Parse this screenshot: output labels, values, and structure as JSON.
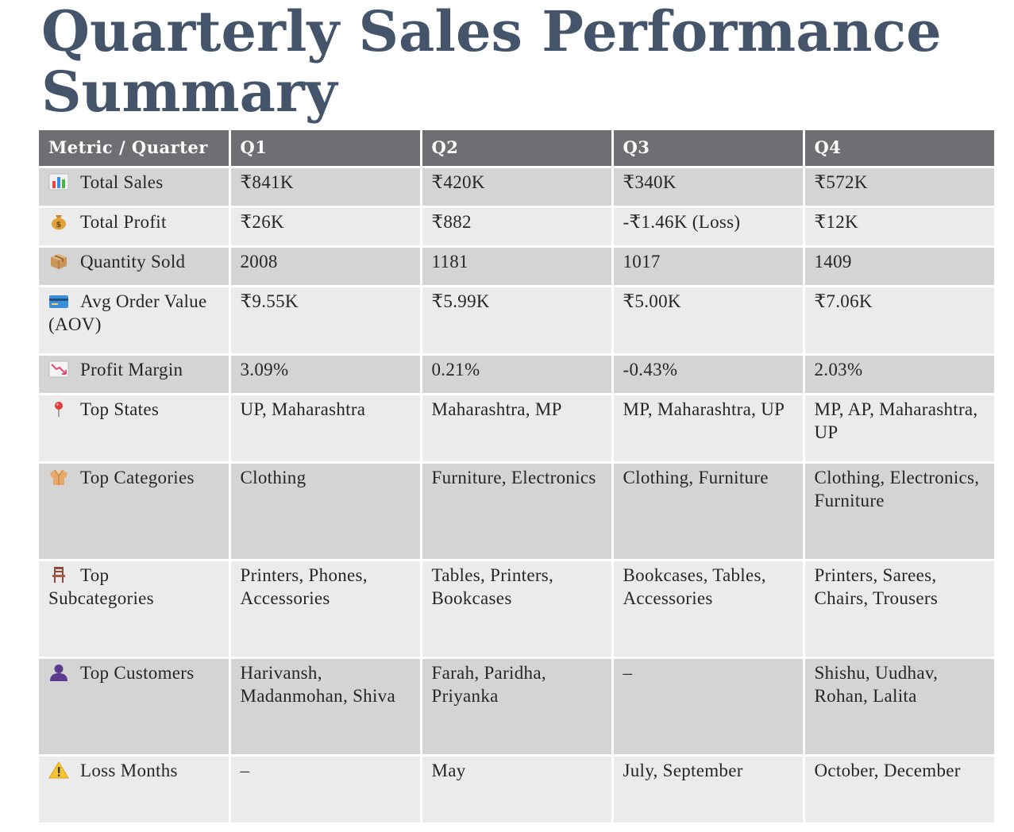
{
  "title": "Quarterly Sales Performance Summary",
  "table": {
    "headers": [
      "Metric / Quarter",
      "Q1",
      "Q2",
      "Q3",
      "Q4"
    ],
    "rows": [
      {
        "icon": "bar-chart-icon",
        "metric": "Total Sales",
        "values": [
          "₹841K",
          "₹420K",
          "₹340K",
          "₹572K"
        ]
      },
      {
        "icon": "money-bag-icon",
        "metric": "Total Profit",
        "values": [
          "₹26K",
          "₹882",
          "-₹1.46K (Loss)",
          "₹12K"
        ]
      },
      {
        "icon": "package-icon",
        "metric": "Quantity Sold",
        "values": [
          "2008",
          "1181",
          "1017",
          "1409"
        ]
      },
      {
        "icon": "credit-card-icon",
        "metric": "Avg Order Value (AOV)",
        "values": [
          "₹9.55K",
          "₹5.99K",
          "₹5.00K",
          "₹7.06K"
        ]
      },
      {
        "icon": "chart-decreasing-icon",
        "metric": "Profit Margin",
        "values": [
          "3.09%",
          "0.21%",
          "-0.43%",
          "2.03%"
        ]
      },
      {
        "icon": "round-pushpin-icon",
        "metric": "Top States",
        "values": [
          "UP, Maharashtra",
          "Maharashtra, MP",
          "MP, Maharashtra, UP",
          "MP, AP, Maharashtra, UP"
        ]
      },
      {
        "icon": "coat-icon",
        "metric": "Top Categories",
        "values": [
          "Clothing",
          "Furniture, Electronics",
          "Clothing, Furniture",
          "Clothing, Electronics, Furniture"
        ]
      },
      {
        "icon": "chair-icon",
        "metric": "Top Subcategories",
        "values": [
          "Printers, Phones, Accessories",
          "Tables, Printers, Bookcases",
          "Bookcases, Tables, Accessories",
          "Printers, Sarees, Chairs, Trousers"
        ]
      },
      {
        "icon": "person-silhouette-icon",
        "metric": "Top Customers",
        "values": [
          "Harivansh, Madanmohan, Shiva",
          "Farah, Paridha, Priyanka",
          "–",
          "Shishu, Uudhav, Rohan, Lalita"
        ]
      },
      {
        "icon": "warning-icon",
        "metric": "Loss Months",
        "values": [
          "–",
          "May",
          "July, September",
          "October, December"
        ]
      }
    ]
  }
}
